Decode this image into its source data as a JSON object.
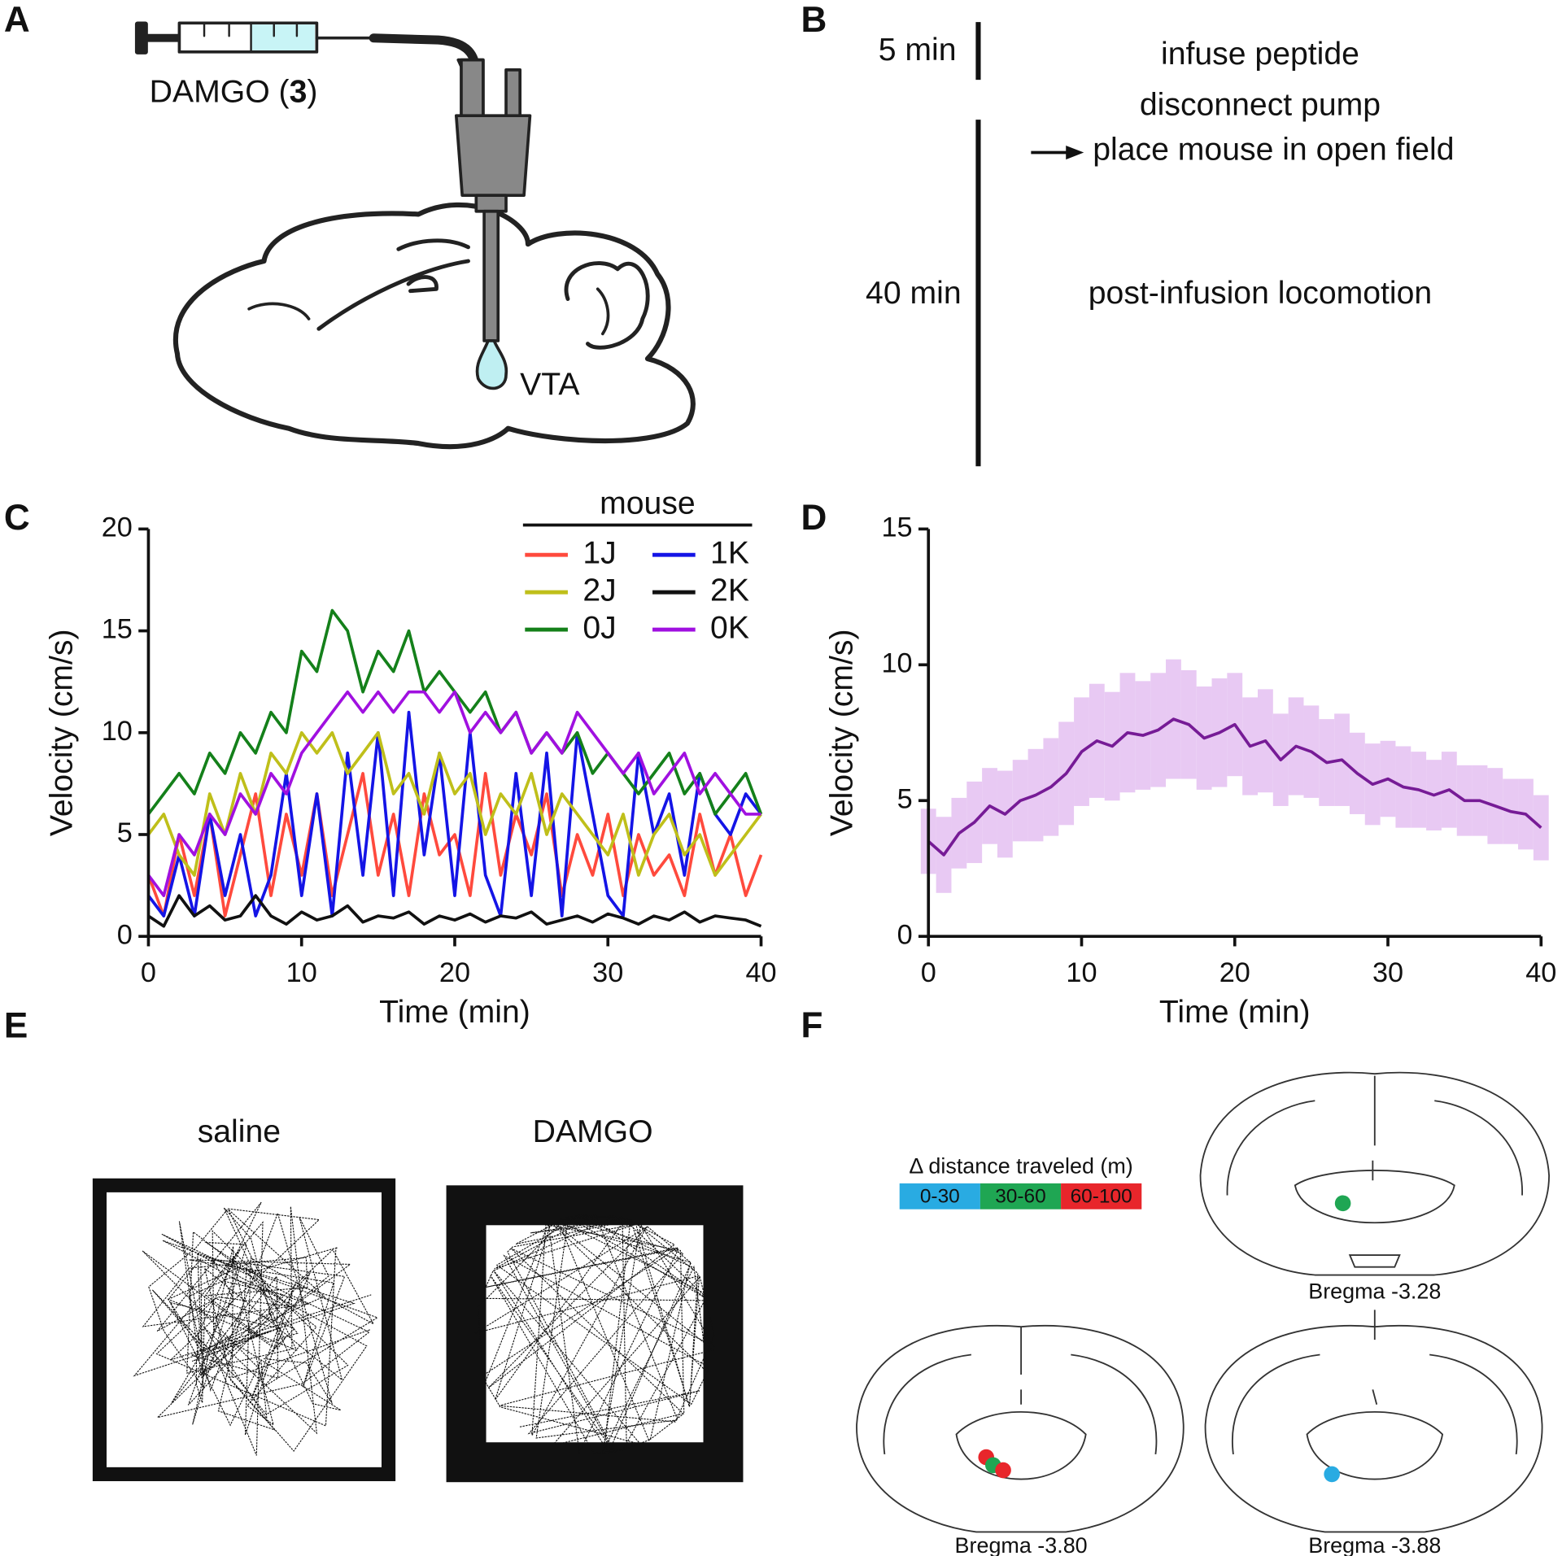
{
  "panel_labels": [
    "A",
    "B",
    "C",
    "D",
    "E",
    "F"
  ],
  "panel_a": {
    "syringe_label": [
      "DAMGO (",
      "3",
      ")"
    ],
    "target": "VTA"
  },
  "panel_b": {
    "short_duration": "5 min",
    "step_1": "infuse peptide",
    "step_2": "disconnect pump",
    "step_3": "place mouse in open field",
    "long_duration": "40 min",
    "step_4": "post-infusion locomotion"
  },
  "chart_data": [
    {
      "type": "line",
      "xlabel": "Time (min)",
      "ylabel": "Velocity (cm/s)",
      "legend_title": "mouse",
      "x": [
        0,
        1,
        2,
        3,
        4,
        5,
        6,
        7,
        8,
        9,
        10,
        11,
        12,
        13,
        14,
        15,
        16,
        17,
        18,
        19,
        20,
        21,
        22,
        23,
        24,
        25,
        26,
        27,
        28,
        29,
        30,
        31,
        32,
        33,
        34,
        35,
        36,
        37,
        38,
        39,
        40
      ],
      "xlim": [
        0,
        40
      ],
      "xticks": [
        0,
        10,
        20,
        30,
        40
      ],
      "ylim": [
        0,
        20
      ],
      "yticks": [
        0,
        5,
        10,
        15,
        20
      ],
      "grid": false,
      "series": [
        {
          "name": "1J",
          "color": "#ff4a3d",
          "values": [
            3,
            1,
            5,
            2,
            6,
            1,
            4,
            7,
            2,
            6,
            3,
            7,
            2,
            5,
            8,
            3,
            6,
            2,
            7,
            4,
            5,
            2,
            8,
            3,
            6,
            4,
            7,
            2,
            5,
            3,
            6,
            2,
            5,
            3,
            4,
            2,
            6,
            3,
            5,
            2,
            4
          ]
        },
        {
          "name": "1K",
          "color": "#1414e6",
          "values": [
            2,
            1,
            4,
            1,
            6,
            2,
            5,
            1,
            3,
            8,
            2,
            7,
            1,
            9,
            3,
            10,
            2,
            11,
            4,
            9,
            2,
            10,
            3,
            1,
            8,
            2,
            9,
            1,
            10,
            6,
            2,
            1,
            9,
            5,
            7,
            3,
            8,
            6,
            5,
            7,
            6
          ]
        },
        {
          "name": "2J",
          "color": "#bfbf1a",
          "values": [
            5,
            6,
            4,
            3,
            7,
            5,
            8,
            6,
            9,
            8,
            10,
            9,
            10,
            8,
            9,
            10,
            7,
            8,
            6,
            9,
            7,
            8,
            5,
            7,
            6,
            8,
            5,
            7,
            6,
            5,
            4,
            6,
            3,
            5,
            6,
            4,
            5,
            3,
            4,
            5,
            6
          ]
        },
        {
          "name": "2K",
          "color": "#111111",
          "values": [
            1,
            0.5,
            2,
            1,
            1.5,
            0.8,
            1,
            2,
            1,
            0.6,
            1.2,
            0.8,
            1,
            1.5,
            0.7,
            1,
            0.9,
            1.2,
            0.6,
            1,
            0.8,
            1.1,
            0.7,
            1,
            0.9,
            1.2,
            0.6,
            0.8,
            1,
            0.7,
            1.1,
            0.9,
            0.6,
            1,
            0.8,
            1.2,
            0.7,
            1,
            0.9,
            0.8,
            0.5
          ]
        },
        {
          "name": "0J",
          "color": "#14801a",
          "values": [
            6,
            7,
            8,
            7,
            9,
            8,
            10,
            9,
            11,
            10,
            14,
            13,
            16,
            15,
            12,
            14,
            13,
            15,
            12,
            13,
            12,
            11,
            12,
            10,
            11,
            9,
            10,
            9,
            10,
            8,
            9,
            8,
            7,
            8,
            9,
            7,
            8,
            6,
            7,
            8,
            6
          ]
        },
        {
          "name": "0K",
          "color": "#a010e0",
          "values": [
            3,
            2,
            5,
            4,
            6,
            5,
            7,
            6,
            8,
            7,
            9,
            10,
            11,
            12,
            11,
            12,
            11,
            12,
            12,
            11,
            12,
            10,
            11,
            10,
            11,
            9,
            10,
            9,
            11,
            10,
            9,
            8,
            9,
            7,
            8,
            9,
            7,
            8,
            7,
            6,
            6
          ]
        }
      ]
    },
    {
      "type": "line",
      "xlabel": "Time (min)",
      "ylabel": "Velocity (cm/s)",
      "x": [
        0,
        1,
        2,
        3,
        4,
        5,
        6,
        7,
        8,
        9,
        10,
        11,
        12,
        13,
        14,
        15,
        16,
        17,
        18,
        19,
        20,
        21,
        22,
        23,
        24,
        25,
        26,
        27,
        28,
        29,
        30,
        31,
        32,
        33,
        34,
        35,
        36,
        37,
        38,
        39,
        40
      ],
      "xlim": [
        0,
        40
      ],
      "xticks": [
        0,
        10,
        20,
        30,
        40
      ],
      "ylim": [
        0,
        15
      ],
      "yticks": [
        0,
        5,
        10,
        15
      ],
      "grid": false,
      "series": [
        {
          "color": "#761b96",
          "band_color": "#e8c9f3",
          "values": [
            3.5,
            3,
            3.8,
            4.2,
            4.8,
            4.5,
            5,
            5.2,
            5.5,
            6,
            6.8,
            7.2,
            7,
            7.5,
            7.4,
            7.6,
            8,
            7.8,
            7.3,
            7.5,
            7.8,
            7,
            7.2,
            6.5,
            7,
            6.8,
            6.4,
            6.5,
            6,
            5.6,
            5.8,
            5.5,
            5.4,
            5.2,
            5.4,
            5,
            5,
            4.8,
            4.6,
            4.5,
            4
          ],
          "error": [
            1.2,
            1.4,
            1.3,
            1.5,
            1.4,
            1.6,
            1.5,
            1.7,
            1.8,
            1.9,
            2,
            2.1,
            2,
            2.2,
            2,
            2.1,
            2.2,
            2,
            1.9,
            2,
            1.9,
            1.8,
            1.9,
            1.7,
            1.8,
            1.7,
            1.6,
            1.7,
            1.5,
            1.5,
            1.4,
            1.5,
            1.4,
            1.3,
            1.4,
            1.3,
            1.3,
            1.4,
            1.2,
            1.3,
            1.2
          ]
        }
      ]
    }
  ],
  "panel_e": {
    "left_title": "saline",
    "right_title": "DAMGO"
  },
  "panel_f": {
    "legend_title": "Δ distance traveled (m)",
    "bins": [
      {
        "label": "0-30",
        "color": "#29abe2"
      },
      {
        "label": "30-60",
        "color": "#1fa653"
      },
      {
        "label": "60-100",
        "color": "#e8262b"
      }
    ],
    "sections": [
      "Bregma -3.28",
      "Bregma -3.80",
      "Bregma -3.88"
    ]
  }
}
